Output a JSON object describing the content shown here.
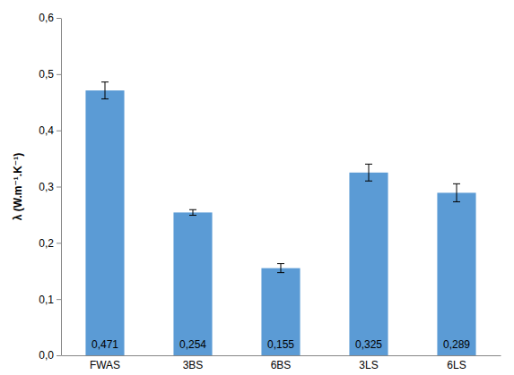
{
  "chart_data": {
    "type": "bar",
    "y_label": "λ (W.m⁻¹.K⁻¹)",
    "categories": [
      "FWAS",
      "3BS",
      "6BS",
      "3LS",
      "6LS"
    ],
    "values": [
      0.471,
      0.254,
      0.155,
      0.325,
      0.289
    ],
    "value_labels": [
      "0,471",
      "0,254",
      "0,155",
      "0,325",
      "0,289"
    ],
    "errors": [
      0.015,
      0.005,
      0.008,
      0.015,
      0.016
    ],
    "color": "#5b9bd5",
    "data_labels": true,
    "grid": false,
    "ylim": [
      0,
      0.6
    ],
    "yticks": [
      {
        "value": 0,
        "label": "0,0"
      },
      {
        "value": 0.1,
        "label": "0,1"
      },
      {
        "value": 0.2,
        "label": "0,2"
      },
      {
        "value": 0.3,
        "label": "0,3"
      },
      {
        "value": 0.4,
        "label": "0,4"
      },
      {
        "value": 0.5,
        "label": "0,5"
      },
      {
        "value": 0.6,
        "label": "0,6"
      }
    ]
  }
}
